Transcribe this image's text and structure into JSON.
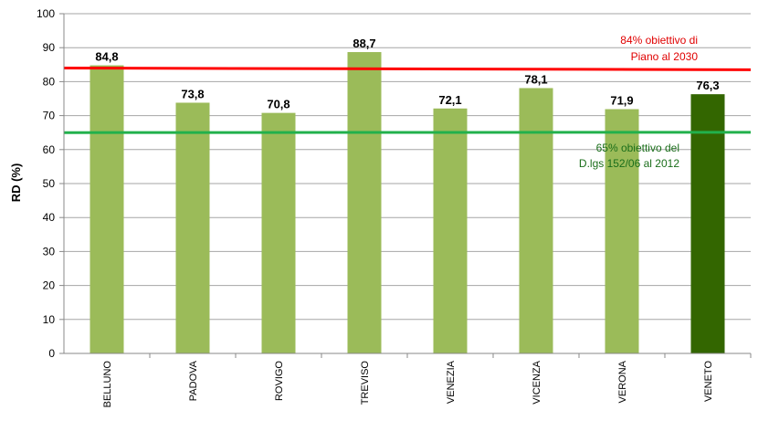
{
  "chart_data": {
    "type": "bar",
    "title": "",
    "xlabel": "",
    "ylabel": "RD (%)",
    "ylim": [
      0,
      100
    ],
    "yticks": [
      0,
      10,
      20,
      30,
      40,
      50,
      60,
      70,
      80,
      90,
      100
    ],
    "grid": true,
    "categories": [
      "BELLUNO",
      "PADOVA",
      "ROVIGO",
      "TREVISO",
      "VENEZIA",
      "VICENZA",
      "VERONA",
      "VENETO"
    ],
    "values": [
      84.8,
      73.8,
      70.8,
      88.7,
      72.1,
      78.1,
      71.9,
      76.3
    ],
    "value_labels": [
      "84,8",
      "73,8",
      "70,8",
      "88,7",
      "72,1",
      "78,1",
      "71,9",
      "76,3"
    ],
    "bar_colors": [
      "#9bbb59",
      "#9bbb59",
      "#9bbb59",
      "#9bbb59",
      "#9bbb59",
      "#9bbb59",
      "#9bbb59",
      "#336600"
    ],
    "reference_lines": [
      {
        "value": 84,
        "color": "#ff0000",
        "label_lines": [
          "84% obiettivo di",
          "Piano al 2030"
        ]
      },
      {
        "value": 65,
        "color": "#22b14c",
        "label_lines": [
          "65% obiettivo del",
          "D.lgs 152/06  al 2012"
        ]
      }
    ]
  }
}
